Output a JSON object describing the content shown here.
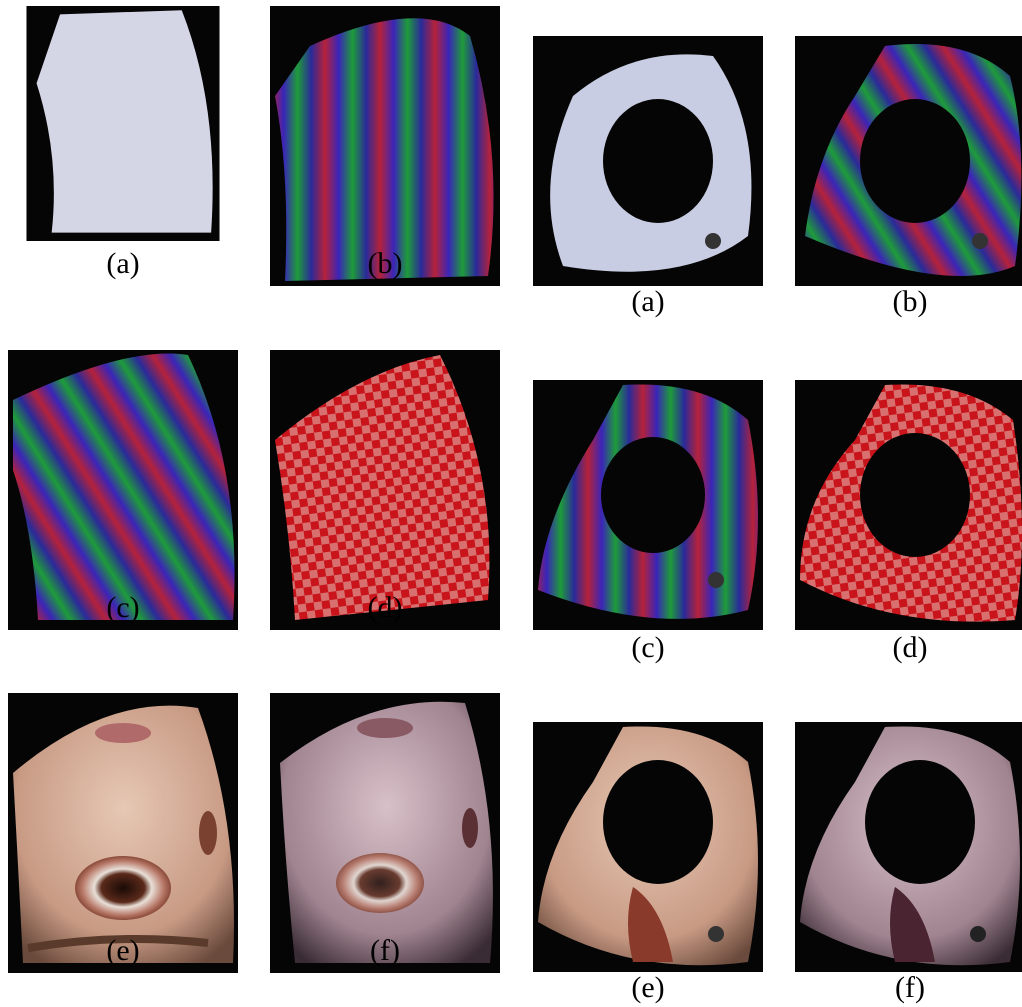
{
  "figure": {
    "left_panels": [
      {
        "id": "a",
        "label": "(a)",
        "content": "white-patch"
      },
      {
        "id": "b",
        "label": "(b)",
        "content": "rainbow-vertical"
      },
      {
        "id": "c",
        "label": "(c)",
        "content": "rainbow-diagonal"
      },
      {
        "id": "d",
        "label": "(d)",
        "content": "red-checker"
      },
      {
        "id": "e",
        "label": "(e)",
        "content": "eye-texture"
      },
      {
        "id": "f",
        "label": "(f)",
        "content": "eye-projected"
      }
    ],
    "right_panels": [
      {
        "id": "a",
        "label": "(a)",
        "content": "white-ring"
      },
      {
        "id": "b",
        "label": "(b)",
        "content": "rainbow-ring"
      },
      {
        "id": "c",
        "label": "(c)",
        "content": "rainbow-ring-2"
      },
      {
        "id": "d",
        "label": "(d)",
        "content": "checker-ring"
      },
      {
        "id": "e",
        "label": "(e)",
        "content": "skin-ring"
      },
      {
        "id": "f",
        "label": "(f)",
        "content": "projected-ring"
      }
    ]
  }
}
